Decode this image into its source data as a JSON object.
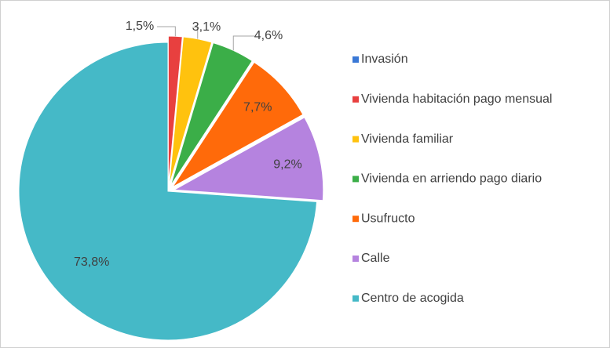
{
  "chart_data": {
    "type": "pie",
    "categories": [
      "Invasión",
      "Vivienda habitación pago mensual",
      "Vivienda familiar",
      "Vivienda en arriendo pago diario",
      "Usufructo",
      "Calle",
      "Centro de acogida"
    ],
    "values": [
      0,
      1.5,
      3.1,
      4.6,
      7.7,
      9.2,
      73.8
    ],
    "value_labels": [
      null,
      "1,5%",
      "3,1%",
      "4,6%",
      "7,7%",
      "9,2%",
      "73,8%"
    ],
    "colors": [
      "#3a78d6",
      "#e8403f",
      "#ffc20e",
      "#3bae48",
      "#ff6a0a",
      "#b583df",
      "#45b9c7"
    ],
    "legend": "right"
  }
}
